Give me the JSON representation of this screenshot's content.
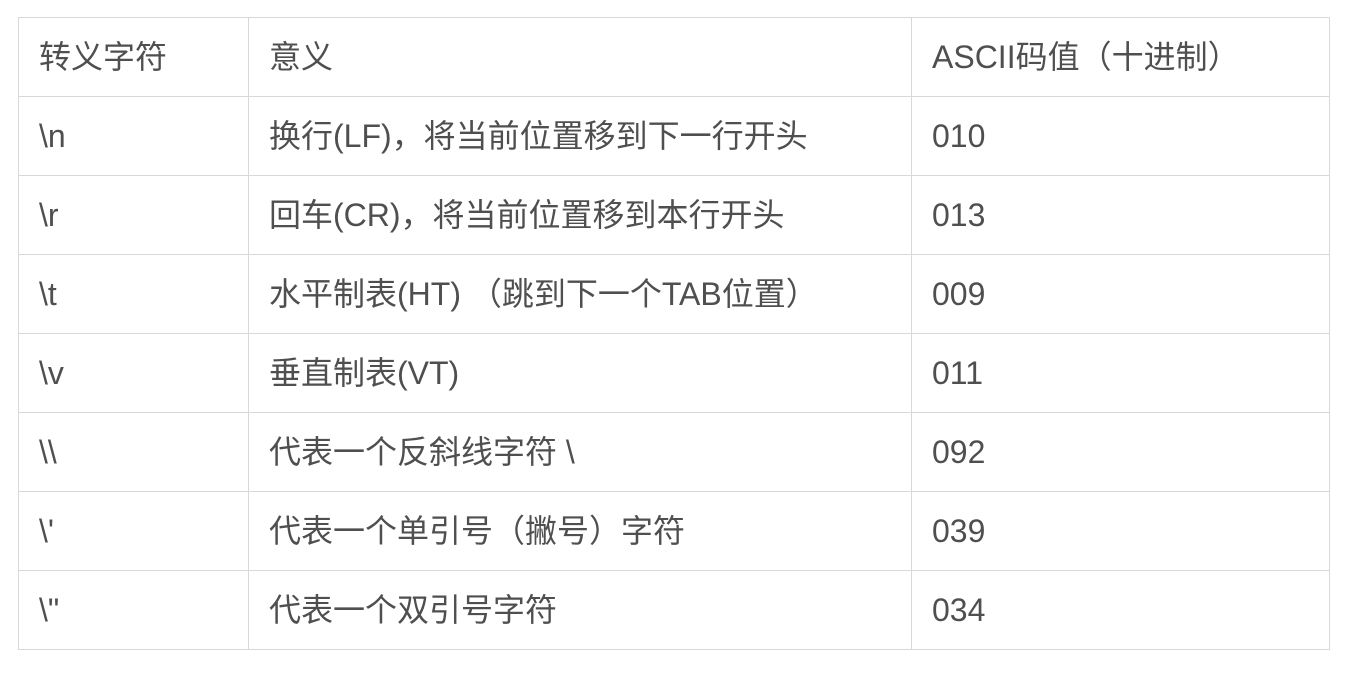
{
  "table": {
    "title": "escape-characters-ascii-table",
    "headers": {
      "escape_char": "转义字符",
      "meaning": "意义",
      "ascii_value": "ASCII码值（十进制）"
    },
    "rows": [
      {
        "char": "\\n",
        "meaning": "换行(LF)，将当前位置移到下一行开头",
        "ascii": "010"
      },
      {
        "char": "\\r",
        "meaning": "回车(CR)，将当前位置移到本行开头",
        "ascii": "013"
      },
      {
        "char": "\\t",
        "meaning": "水平制表(HT) （跳到下一个TAB位置）",
        "ascii": "009"
      },
      {
        "char": "\\v",
        "meaning": "垂直制表(VT)",
        "ascii": "011"
      },
      {
        "char": "\\\\",
        "meaning": "代表一个反斜线字符 \\",
        "ascii": "092"
      },
      {
        "char": "\\'",
        "meaning": "代表一个单引号（撇号）字符",
        "ascii": "039"
      },
      {
        "char": "\\\"",
        "meaning": "代表一个双引号字符",
        "ascii": "034"
      }
    ],
    "colors": {
      "border": "#d8d8d8",
      "text": "#4f4f4f",
      "background": "#ffffff"
    }
  }
}
